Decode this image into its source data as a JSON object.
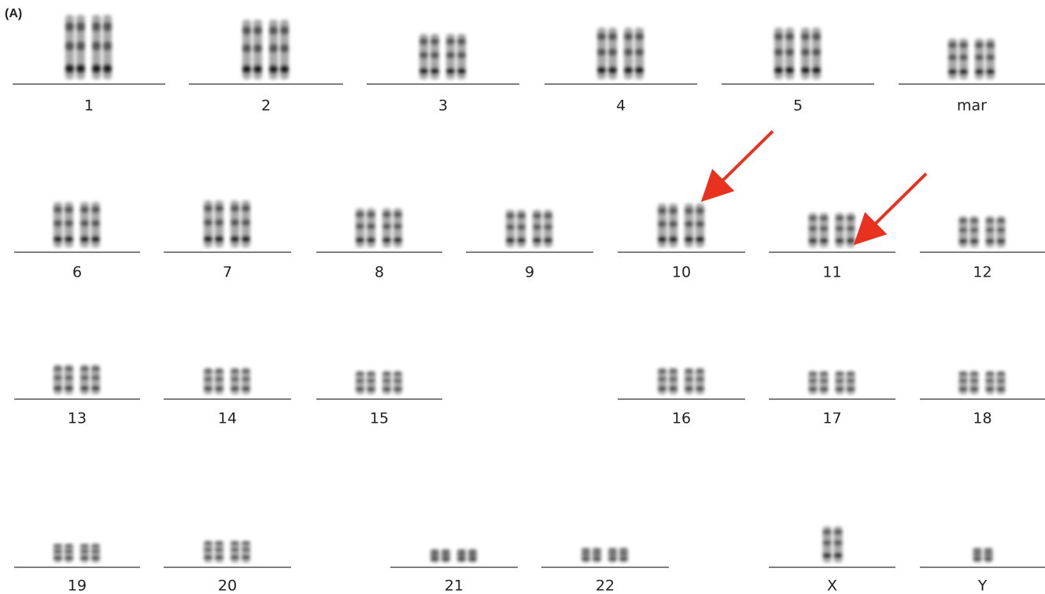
{
  "panel_label": "(A)",
  "rows": [
    [
      "1",
      "2",
      "3",
      "4",
      "5",
      "mar"
    ],
    [
      "6",
      "7",
      "8",
      "9",
      "10",
      "11",
      "12"
    ],
    [
      "13",
      "14",
      "15",
      "16",
      "17",
      "18"
    ],
    [
      "19",
      "20",
      "21",
      "22",
      "X",
      "Y"
    ]
  ]
}
